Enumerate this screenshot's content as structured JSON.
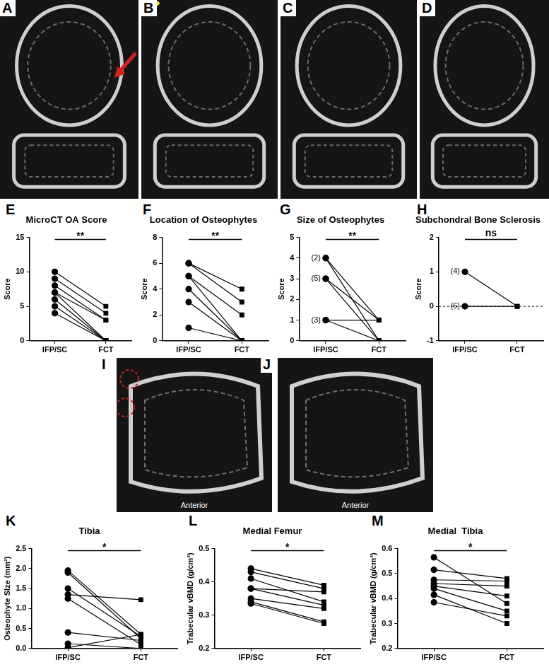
{
  "images": [
    {
      "panel": "A"
    },
    {
      "panel": "B"
    },
    {
      "panel": "C"
    },
    {
      "panel": "D"
    },
    {
      "panel": "I",
      "caption": "Anterior"
    },
    {
      "panel": "J",
      "caption": "Anterior"
    }
  ],
  "chart_data": [
    {
      "type": "paired",
      "panel": "E",
      "title": "MicroCT OA Score",
      "y_label": "Score",
      "annotation": "**",
      "series": [
        {
          "name": "IFP/SC",
          "marker": "circle",
          "color": "#000000",
          "values": [
            10,
            9,
            8,
            7,
            7,
            6,
            5,
            4
          ]
        },
        {
          "name": "FCT",
          "marker": "square",
          "color": "#000000",
          "values": [
            5,
            4,
            3,
            0,
            3,
            0,
            0,
            0
          ]
        }
      ],
      "ylim": [
        0,
        15
      ],
      "yticks": [
        0,
        5,
        10,
        15
      ],
      "grid": false
    },
    {
      "type": "paired",
      "panel": "F",
      "title": "Location of Osteophytes",
      "y_label": "Score",
      "annotation": "**",
      "series": [
        {
          "name": "IFP/SC",
          "marker": "circle",
          "color": "#000000",
          "values": [
            6,
            6,
            5,
            5,
            4,
            3,
            1
          ]
        },
        {
          "name": "FCT",
          "marker": "square",
          "color": "#000000",
          "values": [
            4,
            3,
            2,
            0,
            0,
            0,
            0
          ]
        }
      ],
      "ylim": [
        0,
        8
      ],
      "yticks": [
        0,
        2,
        4,
        6,
        8
      ],
      "grid": false
    },
    {
      "type": "paired",
      "panel": "G",
      "title": "Size of Osteophytes",
      "y_label": "Score",
      "annotation": "**",
      "series": [
        {
          "name": "IFP/SC",
          "marker": "circle",
          "color": "#000000",
          "values": [
            4,
            4,
            3,
            3,
            1,
            1
          ]
        },
        {
          "name": "FCT",
          "marker": "square",
          "color": "#000000",
          "values": [
            1,
            0,
            1,
            0,
            1,
            0
          ]
        }
      ],
      "annotations": [
        {
          "x": "IFP/SC",
          "y": 4,
          "text": "(2)"
        },
        {
          "x": "IFP/SC",
          "y": 3,
          "text": "(5)"
        },
        {
          "x": "IFP/SC",
          "y": 1,
          "text": "(3)"
        }
      ],
      "ylim": [
        0,
        5
      ],
      "yticks": [
        0,
        1,
        2,
        3,
        4,
        5
      ],
      "grid": false
    },
    {
      "type": "paired",
      "panel": "H",
      "title": "Subchondral Bone Sclerosis",
      "y_label": "Score",
      "annotation": "ns",
      "series": [
        {
          "name": "IFP/SC",
          "marker": "circle",
          "color": "#000000",
          "values": [
            1,
            0
          ]
        },
        {
          "name": "FCT",
          "marker": "square",
          "color": "#000000",
          "values": [
            0,
            0
          ]
        }
      ],
      "annotations": [
        {
          "x": "IFP/SC",
          "y": 1,
          "text": "(4)"
        },
        {
          "x": "IFP/SC",
          "y": 0,
          "text": "(6)"
        }
      ],
      "ylim": [
        -1,
        2
      ],
      "yticks": [
        -1,
        0,
        1,
        2
      ],
      "grid": false
    },
    {
      "type": "paired",
      "panel": "K",
      "title": "Tibia",
      "y_label": "Osteophyte SIze (mm²)",
      "annotation": "*",
      "series": [
        {
          "name": "IFP/SC",
          "marker": "circle",
          "color": "#000000",
          "values": [
            1.95,
            1.9,
            1.5,
            1.35,
            1.25,
            0.4,
            0.12,
            0.02
          ]
        },
        {
          "name": "FCT",
          "marker": "square",
          "color": "#000000",
          "values": [
            0.35,
            0.25,
            0.3,
            1.22,
            0.1,
            0.2,
            0.0,
            0.35
          ]
        }
      ],
      "ylim": [
        0,
        2.5
      ],
      "yticks": [
        {
          "value": 0,
          "label": "0.0"
        },
        0.5,
        {
          "value": 1,
          "label": "1.0"
        },
        1.5,
        {
          "value": 2,
          "label": "2.0"
        },
        2.5
      ],
      "grid": false
    },
    {
      "type": "paired",
      "panel": "L",
      "title": "Medial Femur",
      "y_label": "Trabecular vBMD (g/cm³)",
      "annotation": "*",
      "series": [
        {
          "name": "IFP/SC",
          "marker": "circle",
          "color": "#000000",
          "values": [
            0.44,
            0.43,
            0.41,
            0.38,
            0.38,
            0.35,
            0.34,
            0.335
          ]
        },
        {
          "name": "FCT",
          "marker": "square",
          "color": "#000000",
          "values": [
            0.39,
            0.38,
            0.34,
            0.33,
            0.37,
            0.32,
            0.28,
            0.275
          ]
        }
      ],
      "ylim": [
        0.2,
        0.5
      ],
      "yticks": [
        0.2,
        0.3,
        0.4,
        0.5
      ],
      "grid": false
    },
    {
      "type": "paired",
      "panel": "M",
      "title": "Medial  Tibia",
      "y_label": "Trabecular vBMD (g/cm³)",
      "annotation": "*",
      "series": [
        {
          "name": "IFP/SC",
          "marker": "circle",
          "color": "#000000",
          "values": [
            0.565,
            0.515,
            0.475,
            0.46,
            0.45,
            0.44,
            0.415,
            0.385
          ]
        },
        {
          "name": "FCT",
          "marker": "square",
          "color": "#000000",
          "values": [
            0.38,
            0.48,
            0.47,
            0.45,
            0.41,
            0.35,
            0.3,
            0.33
          ]
        }
      ],
      "ylim": [
        0.2,
        0.6
      ],
      "yticks": [
        0.2,
        0.3,
        0.4,
        0.5,
        0.6
      ],
      "grid": false
    }
  ]
}
